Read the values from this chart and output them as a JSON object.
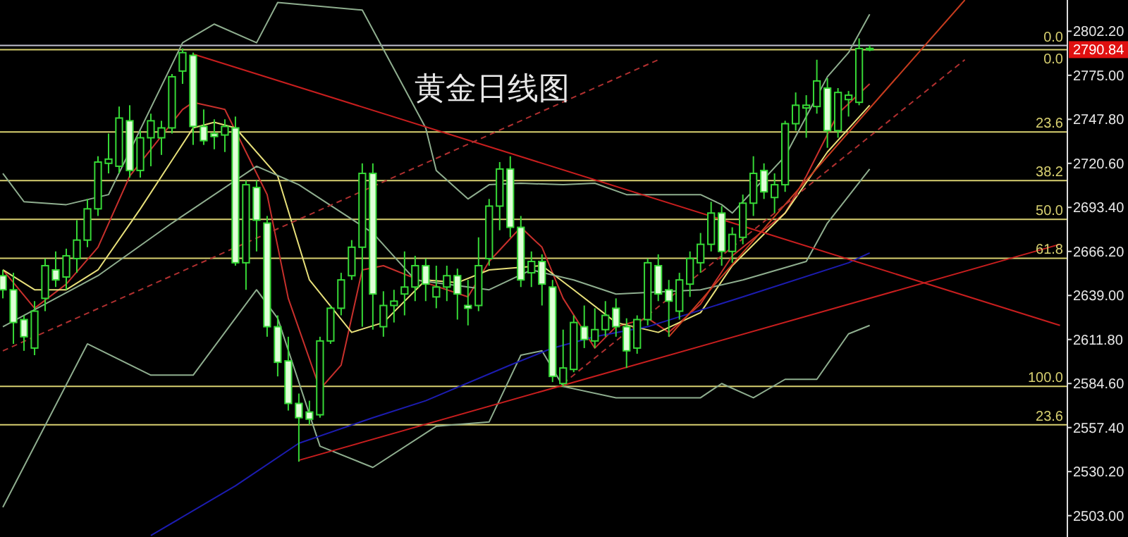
{
  "chart_data": {
    "type": "candlestick",
    "title": "黄金日线图",
    "categories": [
      null,
      null,
      null,
      null,
      null,
      null,
      null,
      null,
      null,
      null,
      null,
      null,
      null,
      null,
      null,
      null,
      null,
      null,
      null,
      null,
      null,
      null,
      null,
      null,
      null,
      null,
      null,
      null,
      null,
      null,
      null,
      null,
      null,
      null,
      null,
      null,
      null,
      null,
      null,
      null,
      null,
      null,
      null,
      null,
      null,
      null,
      null,
      null,
      null,
      null,
      null,
      null,
      null,
      null,
      null,
      null,
      null,
      null,
      null,
      null,
      null,
      null,
      null,
      null,
      null,
      null,
      null,
      null,
      null,
      null,
      null,
      null,
      null,
      null,
      null,
      null,
      null,
      null,
      null,
      null,
      null,
      null,
      null,
      null,
      null,
      null,
      null,
      null,
      null,
      null,
      null,
      null,
      null,
      null,
      null,
      null,
      null,
      null,
      null,
      null,
      null
    ],
    "ohlc": [
      [
        2651.2,
        2654.8,
        2637.2,
        2642.5
      ],
      [
        2642.5,
        2653.0,
        2609.1,
        2622.3
      ],
      [
        2624.1,
        2626.7,
        2604.8,
        2613.5
      ],
      [
        2606.5,
        2635.5,
        2602.1,
        2629.3
      ],
      [
        2637.2,
        2661.8,
        2629.3,
        2657.4
      ],
      [
        2654.8,
        2666.2,
        2644.2,
        2648.6
      ],
      [
        2650.4,
        2667.9,
        2642.5,
        2663.5
      ],
      [
        2661.8,
        2685.5,
        2653.0,
        2673.2
      ],
      [
        2673.2,
        2698.6,
        2668.8,
        2692.5
      ],
      [
        2692.5,
        2725.0,
        2688.1,
        2721.4
      ],
      [
        2720.6,
        2739.0,
        2714.4,
        2723.2
      ],
      [
        2718.8,
        2755.7,
        2714.4,
        2748.6
      ],
      [
        2746.9,
        2756.5,
        2711.8,
        2716.2
      ],
      [
        2716.2,
        2740.8,
        2711.8,
        2736.4
      ],
      [
        2736.4,
        2751.3,
        2718.8,
        2746.9
      ],
      [
        2736.4,
        2746.9,
        2725.8,
        2742.5
      ],
      [
        2742.5,
        2775.8,
        2739.0,
        2774.1
      ],
      [
        2777.6,
        2791.6,
        2769.7,
        2789.0
      ],
      [
        2787.3,
        2789.0,
        2732.0,
        2743.4
      ],
      [
        2743.4,
        2753.9,
        2732.0,
        2734.6
      ],
      [
        2739.0,
        2747.8,
        2729.3,
        2737.2
      ],
      [
        2738.1,
        2747.8,
        2727.6,
        2743.4
      ],
      [
        2742.5,
        2749.5,
        2657.4,
        2659.2
      ],
      [
        2659.2,
        2710.0,
        2642.5,
        2707.4
      ],
      [
        2705.7,
        2710.0,
        2666.2,
        2685.5
      ],
      [
        2683.7,
        2688.1,
        2613.5,
        2619.7
      ],
      [
        2619.7,
        2626.7,
        2589.0,
        2597.7
      ],
      [
        2598.6,
        2613.5,
        2567.9,
        2572.3
      ],
      [
        2572.3,
        2578.4,
        2536.3,
        2563.5
      ],
      [
        2567.0,
        2574.0,
        2559.1,
        2562.6
      ],
      [
        2565.3,
        2613.5,
        2563.5,
        2610.9
      ],
      [
        2610.9,
        2632.8,
        2609.1,
        2631.1
      ],
      [
        2631.1,
        2653.0,
        2626.7,
        2648.6
      ],
      [
        2651.2,
        2673.2,
        2648.6,
        2668.8
      ],
      [
        2668.8,
        2720.6,
        2619.7,
        2714.4
      ],
      [
        2714.4,
        2720.6,
        2617.9,
        2639.9
      ],
      [
        2619.7,
        2641.6,
        2613.5,
        2632.8
      ],
      [
        2632.8,
        2642.5,
        2622.3,
        2635.5
      ],
      [
        2639.9,
        2666.2,
        2626.7,
        2644.2
      ],
      [
        2644.2,
        2663.5,
        2635.5,
        2657.4
      ],
      [
        2657.4,
        2661.8,
        2635.5,
        2646.0
      ],
      [
        2638.1,
        2657.4,
        2631.1,
        2644.2
      ],
      [
        2644.2,
        2657.4,
        2635.5,
        2651.2
      ],
      [
        2651.2,
        2655.6,
        2624.1,
        2639.9
      ],
      [
        2632.8,
        2648.6,
        2620.5,
        2631.1
      ],
      [
        2632.8,
        2674.9,
        2629.3,
        2657.4
      ],
      [
        2661.8,
        2698.6,
        2657.4,
        2694.2
      ],
      [
        2694.2,
        2721.4,
        2679.3,
        2717.1
      ],
      [
        2717.1,
        2725.0,
        2674.9,
        2681.1
      ],
      [
        2681.1,
        2688.1,
        2644.2,
        2648.6
      ],
      [
        2653.0,
        2666.2,
        2644.2,
        2660.0
      ],
      [
        2660.0,
        2664.4,
        2632.8,
        2646.0
      ],
      [
        2644.2,
        2648.6,
        2585.5,
        2589.0
      ],
      [
        2584.6,
        2617.9,
        2582.8,
        2594.2
      ],
      [
        2593.3,
        2626.7,
        2591.6,
        2622.3
      ],
      [
        2619.7,
        2632.8,
        2606.5,
        2611.8
      ],
      [
        2610.9,
        2631.1,
        2606.5,
        2617.9
      ],
      [
        2617.9,
        2635.5,
        2613.5,
        2626.7
      ],
      [
        2631.1,
        2637.2,
        2613.5,
        2619.7
      ],
      [
        2619.7,
        2624.9,
        2594.2,
        2604.8
      ],
      [
        2606.5,
        2626.7,
        2603.0,
        2624.1
      ],
      [
        2624.1,
        2661.8,
        2620.5,
        2659.2
      ],
      [
        2657.4,
        2664.4,
        2635.5,
        2639.9
      ],
      [
        2642.5,
        2648.6,
        2613.5,
        2635.5
      ],
      [
        2629.3,
        2653.0,
        2624.1,
        2648.6
      ],
      [
        2646.0,
        2666.2,
        2638.1,
        2661.8
      ],
      [
        2659.2,
        2677.6,
        2653.0,
        2670.6
      ],
      [
        2670.6,
        2696.9,
        2666.2,
        2689.9
      ],
      [
        2689.9,
        2694.2,
        2657.4,
        2666.2
      ],
      [
        2666.2,
        2681.1,
        2659.2,
        2676.7
      ],
      [
        2674.9,
        2701.3,
        2670.6,
        2696.0
      ],
      [
        2696.0,
        2725.0,
        2688.1,
        2714.4
      ],
      [
        2716.2,
        2720.6,
        2698.6,
        2703.0
      ],
      [
        2699.5,
        2714.4,
        2689.9,
        2707.4
      ],
      [
        2707.4,
        2746.9,
        2703.0,
        2745.1
      ],
      [
        2745.1,
        2764.4,
        2740.8,
        2756.5
      ],
      [
        2754.8,
        2762.7,
        2736.4,
        2756.5
      ],
      [
        2755.7,
        2784.6,
        2751.3,
        2771.5
      ],
      [
        2767.1,
        2773.2,
        2730.2,
        2740.8
      ],
      [
        2740.8,
        2767.1,
        2736.4,
        2764.4
      ],
      [
        2760.0,
        2765.3,
        2749.5,
        2762.7
      ],
      [
        2758.3,
        2797.8,
        2756.5,
        2791.5
      ],
      [
        2791.6,
        2793.4,
        2789.9,
        2790.84
      ],
      null,
      null,
      null,
      null,
      null,
      null,
      null,
      null,
      null,
      null,
      null,
      null,
      null,
      null,
      null,
      null,
      null,
      null
    ],
    "series": [
      {
        "type": "line",
        "color": "#c8302c",
        "values": [
          2654.8,
          null,
          null,
          2631.1,
          null,
          null,
          2646.0,
          null,
          null,
          2668.8,
          null,
          null,
          2712.7,
          null,
          null,
          null,
          null,
          2753.9,
          2758.3,
          null,
          null,
          2753.9,
          null,
          null,
          null,
          2701.3,
          null,
          2637.2,
          null,
          null,
          2581.1,
          null,
          2596.0,
          null,
          2654.8,
          null,
          2657.4,
          null,
          null,
          null,
          2646.9,
          null,
          null,
          null,
          2638.1,
          null,
          2660.0,
          null,
          null,
          2681.1,
          null,
          2668.8,
          null,
          2637.2,
          null,
          null,
          2606.5,
          null,
          2619.7,
          null,
          null,
          2624.9,
          null,
          2616.2,
          null,
          null,
          2633.7,
          null,
          null,
          2663.5,
          null,
          null,
          null,
          null,
          2689.9,
          null,
          2712.7,
          null,
          null,
          2751.3,
          null,
          null,
          2769.7,
          null,
          null,
          null,
          null,
          null,
          null,
          null,
          null,
          null,
          null,
          null,
          null,
          null,
          null,
          null,
          null,
          null,
          null
        ]
      },
      {
        "type": "line",
        "color": "#e8e07a",
        "values": [
          2654.8,
          null,
          null,
          2642.5,
          null,
          null,
          2642.5,
          null,
          null,
          2654.8,
          null,
          null,
          null,
          2692.5,
          null,
          null,
          null,
          null,
          2742.5,
          null,
          2746.0,
          null,
          2742.5,
          null,
          null,
          null,
          2712.7,
          null,
          null,
          2648.6,
          null,
          null,
          null,
          2616.2,
          null,
          null,
          2622.3,
          null,
          null,
          null,
          2648.6,
          null,
          null,
          2646.9,
          null,
          null,
          2654.8,
          null,
          null,
          null,
          null,
          2657.4,
          null,
          null,
          2642.5,
          null,
          null,
          null,
          2622.3,
          null,
          null,
          null,
          2616.2,
          null,
          null,
          null,
          2628.4,
          null,
          null,
          2657.4,
          null,
          null,
          null,
          null,
          2689.9,
          null,
          null,
          null,
          2727.6,
          null,
          null,
          null,
          2756.5,
          null,
          null,
          null,
          null,
          null,
          null,
          null,
          null,
          null,
          null,
          null,
          null,
          null,
          null,
          null,
          null,
          null,
          null
        ]
      },
      {
        "type": "line",
        "color": "#8fae8f",
        "values": [
          2714.4,
          null,
          2696.9,
          null,
          null,
          null,
          2695.1,
          null,
          null,
          null,
          2701.3,
          null,
          null,
          null,
          null,
          null,
          null,
          2795.1,
          null,
          null,
          2806.6,
          null,
          null,
          null,
          2795.1,
          null,
          2820.0,
          null,
          null,
          null,
          null,
          null,
          null,
          null,
          2815.3,
          null,
          null,
          null,
          null,
          null,
          2742.5,
          2716.2,
          null,
          null,
          2698.6,
          null,
          2707.4,
          null,
          null,
          2708.3,
          null,
          null,
          null,
          2707.4,
          null,
          null,
          2708.3,
          null,
          null,
          2701.3,
          null,
          null,
          null,
          null,
          null,
          null,
          2701.3,
          null,
          2695.1,
          2689.9,
          null,
          null,
          null,
          null,
          2725.0,
          null,
          null,
          null,
          2774.1,
          null,
          2789.0,
          null,
          2812.7,
          null,
          null,
          null,
          null,
          null,
          null,
          null,
          null,
          null,
          null,
          null,
          null,
          null,
          null,
          null,
          null,
          null,
          null
        ]
      },
      {
        "type": "line",
        "color": "#8fae8f",
        "values": [
          2619.7,
          null,
          null,
          null,
          null,
          null,
          null,
          null,
          null,
          2651.2,
          null,
          null,
          null,
          null,
          null,
          null,
          2683.7,
          null,
          null,
          null,
          null,
          null,
          null,
          null,
          2718.8,
          null,
          null,
          null,
          2707.4,
          null,
          null,
          null,
          null,
          null,
          null,
          2677.6,
          null,
          null,
          null,
          2648.6,
          null,
          null,
          null,
          null,
          null,
          null,
          2642.5,
          null,
          null,
          null,
          2654.8,
          null,
          null,
          null,
          2648.6,
          null,
          null,
          null,
          2639.9,
          null,
          null,
          null,
          null,
          null,
          null,
          null,
          2642.5,
          null,
          null,
          null,
          2648.6,
          null,
          null,
          null,
          null,
          null,
          2660.0,
          null,
          2683.7,
          null,
          null,
          null,
          2717.1,
          null,
          null,
          null,
          null,
          null,
          null,
          null,
          null,
          null,
          null,
          null,
          null,
          null,
          null,
          null,
          null,
          null,
          null
        ]
      },
      {
        "type": "line",
        "color": "#8fae8f",
        "values": [
          2508.2,
          null,
          null,
          null,
          null,
          null,
          null,
          null,
          2609.1,
          null,
          null,
          null,
          null,
          null,
          2589.8,
          null,
          null,
          null,
          2589.8,
          null,
          null,
          null,
          null,
          null,
          2642.5,
          null,
          2624.9,
          null,
          null,
          null,
          2545.9,
          null,
          null,
          null,
          null,
          2532.8,
          null,
          null,
          null,
          null,
          null,
          2558.2,
          null,
          null,
          null,
          null,
          2560.9,
          null,
          null,
          2602.1,
          null,
          2604.8,
          null,
          2582.8,
          null,
          null,
          null,
          null,
          2575.8,
          null,
          null,
          null,
          null,
          null,
          null,
          null,
          2575.8,
          null,
          2584.6,
          null,
          null,
          2575.8,
          null,
          null,
          2587.2,
          null,
          null,
          2587.2,
          null,
          null,
          2615.3,
          null,
          2620.5,
          null,
          null,
          null,
          null,
          null,
          null,
          null,
          null,
          null,
          null,
          null,
          null,
          null,
          null,
          null,
          null,
          null,
          null
        ]
      },
      {
        "type": "line",
        "color": "#1c1cb0",
        "values": [
          null,
          null,
          null,
          null,
          null,
          null,
          null,
          null,
          null,
          null,
          null,
          null,
          null,
          null,
          2490.7,
          null,
          null,
          null,
          null,
          null,
          null,
          null,
          2521.4,
          null,
          null,
          null,
          null,
          null,
          2547.7,
          null,
          null,
          null,
          null,
          null,
          null,
          2563.5,
          null,
          null,
          null,
          null,
          2574.0,
          null,
          null,
          null,
          null,
          null,
          null,
          null,
          2596.0,
          null,
          null,
          null,
          2606.5,
          null,
          null,
          null,
          2613.5,
          null,
          null,
          null,
          null,
          2619.7,
          null,
          null,
          null,
          null,
          null,
          null,
          null,
          null,
          2638.1,
          null,
          null,
          null,
          null,
          null,
          null,
          null,
          null,
          null,
          2659.2,
          null,
          2665.3,
          null,
          null,
          null,
          null,
          null,
          null,
          null,
          null,
          null,
          null,
          null,
          null,
          null,
          null,
          null,
          null,
          null,
          null
        ]
      },
      {
        "type": "line",
        "color": "#c81e1e",
        "values": [
          null,
          null,
          null,
          null,
          null,
          null,
          null,
          null,
          null,
          null,
          null,
          null,
          null,
          null,
          null,
          null,
          null,
          null,
          2788.1,
          null,
          null,
          null,
          null,
          null,
          null,
          null,
          null,
          null,
          null,
          null,
          null,
          null,
          null,
          null,
          null,
          null,
          null,
          null,
          null,
          null,
          null,
          null,
          null,
          null,
          null,
          null,
          null,
          null,
          null,
          null,
          null,
          null,
          null,
          null,
          null,
          null,
          null,
          null,
          null,
          null,
          null,
          null,
          null,
          null,
          null,
          null,
          null,
          null,
          null,
          null,
          null,
          null,
          null,
          null,
          null,
          null,
          null,
          null,
          null,
          null,
          null,
          null,
          null,
          null,
          null,
          null,
          null,
          null,
          null,
          null,
          null,
          null,
          null,
          null,
          null,
          null,
          null,
          null,
          null,
          null,
          2620.5
        ]
      },
      {
        "type": "line",
        "color": "#c81e1e",
        "values": [
          null,
          null,
          null,
          null,
          null,
          null,
          null,
          null,
          null,
          null,
          null,
          null,
          null,
          null,
          null,
          null,
          null,
          null,
          null,
          null,
          null,
          null,
          null,
          null,
          null,
          null,
          null,
          null,
          2537.2,
          null,
          null,
          null,
          null,
          null,
          null,
          null,
          null,
          null,
          null,
          null,
          null,
          null,
          null,
          null,
          null,
          null,
          null,
          null,
          null,
          null,
          null,
          null,
          null,
          null,
          null,
          null,
          null,
          null,
          null,
          null,
          null,
          null,
          null,
          null,
          null,
          null,
          null,
          null,
          null,
          null,
          null,
          null,
          null,
          null,
          null,
          null,
          null,
          null,
          null,
          null,
          null,
          null,
          null,
          null,
          null,
          null,
          null,
          null,
          null,
          null,
          null,
          null,
          null,
          null,
          null,
          null,
          null,
          null,
          null,
          null,
          2670.6
        ]
      },
      {
        "type": "line",
        "color": "#c83c1e",
        "values": [
          null,
          null,
          null,
          null,
          null,
          null,
          null,
          null,
          null,
          null,
          null,
          null,
          null,
          null,
          null,
          null,
          null,
          null,
          null,
          null,
          null,
          null,
          null,
          null,
          null,
          null,
          null,
          null,
          null,
          null,
          null,
          null,
          null,
          null,
          null,
          null,
          null,
          null,
          null,
          null,
          null,
          null,
          null,
          null,
          null,
          null,
          null,
          null,
          null,
          null,
          null,
          null,
          null,
          null,
          null,
          null,
          null,
          null,
          null,
          null,
          null,
          null,
          null,
          2613.5,
          null,
          null,
          null,
          null,
          null,
          null,
          null,
          null,
          null,
          null,
          null,
          null,
          null,
          null,
          null,
          null,
          null,
          null,
          null,
          null,
          null,
          null,
          null,
          null,
          null,
          null,
          null,
          2821.5,
          null,
          null,
          null,
          null,
          null,
          null,
          null,
          null,
          null
        ]
      },
      {
        "type": "line",
        "color": "#b03030",
        "line_style": "dashed",
        "values": [
          null,
          null,
          null,
          null,
          null,
          null,
          null,
          null,
          null,
          null,
          null,
          null,
          null,
          null,
          null,
          null,
          null,
          null,
          null,
          null,
          null,
          null,
          null,
          null,
          null,
          null,
          null,
          null,
          null,
          null,
          null,
          null,
          null,
          null,
          null,
          null,
          null,
          null,
          null,
          null,
          null,
          null,
          null,
          null,
          null,
          null,
          null,
          null,
          null,
          null,
          null,
          null,
          null,
          2584.6,
          null,
          null,
          null,
          null,
          null,
          null,
          null,
          null,
          null,
          null,
          null,
          null,
          null,
          null,
          null,
          null,
          null,
          null,
          null,
          null,
          null,
          null,
          null,
          null,
          null,
          null,
          null,
          null,
          null,
          null,
          null,
          null,
          null,
          null,
          null,
          null,
          null,
          2784.6,
          null,
          null,
          null,
          null,
          null,
          null,
          null,
          null,
          null
        ]
      },
      {
        "type": "line",
        "color": "#b03030",
        "line_style": "dashed",
        "values": [
          2604.8,
          null,
          null,
          null,
          null,
          null,
          null,
          null,
          null,
          null,
          null,
          null,
          null,
          null,
          null,
          null,
          null,
          null,
          null,
          null,
          null,
          null,
          null,
          null,
          null,
          null,
          null,
          null,
          null,
          null,
          null,
          null,
          null,
          null,
          null,
          null,
          null,
          null,
          null,
          null,
          null,
          null,
          null,
          null,
          null,
          null,
          null,
          null,
          null,
          null,
          null,
          null,
          null,
          null,
          null,
          null,
          null,
          null,
          null,
          null,
          null,
          null,
          2784.6,
          null,
          null,
          null,
          null,
          null,
          null,
          null,
          null,
          null,
          null,
          null,
          null,
          null,
          null,
          null,
          null,
          null,
          null,
          null,
          null,
          null,
          null,
          null,
          null,
          null,
          null,
          null,
          null,
          null,
          null,
          null,
          null,
          null,
          null,
          null,
          null,
          null,
          null
        ]
      }
    ],
    "ylim": [
      2489.8,
      2821.5
    ],
    "yticks": [
      {
        "value": 2503.0,
        "label": "2503.00"
      },
      {
        "value": 2530.2,
        "label": "2530.20"
      },
      {
        "value": 2557.4,
        "label": "2557.40"
      },
      {
        "value": 2584.6,
        "label": "2584.60"
      },
      {
        "value": 2611.8,
        "label": "2611.80"
      },
      {
        "value": 2639.0,
        "label": "2639.00"
      },
      {
        "value": 2666.2,
        "label": "2666.20"
      },
      {
        "value": 2693.4,
        "label": "2693.40"
      },
      {
        "value": 2720.6,
        "label": "2720.60"
      },
      {
        "value": 2747.8,
        "label": "2747.80"
      },
      {
        "value": 2775.0,
        "label": "2775.00"
      },
      {
        "value": 2802.2,
        "label": "2802.20"
      }
    ],
    "ref_lines": [
      {
        "axis": "y",
        "value": 2793.4,
        "color": "#c0c0d0"
      },
      {
        "axis": "y",
        "value": 2790.84,
        "label": "2790.84",
        "color": "#d8d070"
      },
      {
        "axis": "y",
        "value": 2740.0,
        "color": "#d8d070"
      },
      {
        "axis": "y",
        "value": 2710.0,
        "color": "#d8d070"
      },
      {
        "axis": "y",
        "value": 2686.0,
        "color": "#d8d070"
      },
      {
        "axis": "y",
        "value": 2662.0,
        "color": "#d8d070"
      },
      {
        "axis": "y",
        "value": 2582.8,
        "color": "#d8d070"
      },
      {
        "axis": "y",
        "value": 2559.1,
        "color": "#d8d070"
      }
    ],
    "annotations": [
      {
        "text": "0.0",
        "y": 2793.4
      },
      {
        "text": "0.0",
        "y": 2790.84
      },
      {
        "text": "23.6",
        "y": 2740.0
      },
      {
        "text": "38.2",
        "y": 2710.0
      },
      {
        "text": "50.0",
        "y": 2686.0
      },
      {
        "text": "61.8",
        "y": 2662.0
      },
      {
        "text": "100.0",
        "y": 2582.8
      },
      {
        "text": "23.6",
        "y": 2559.1
      }
    ],
    "tick_labels": "y"
  }
}
